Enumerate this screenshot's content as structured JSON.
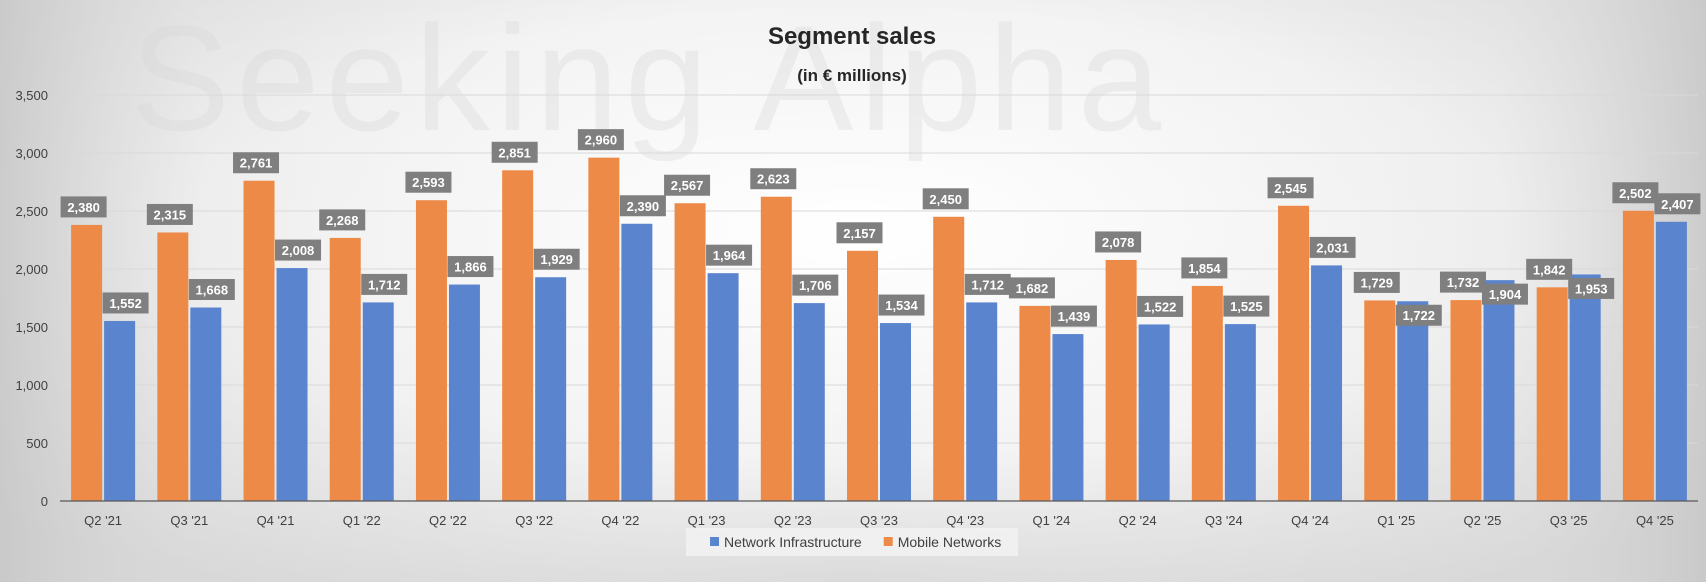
{
  "chart_data": {
    "type": "bar",
    "title": "Segment sales",
    "subtitle": "(in € millions)",
    "watermark": "Seeking Alpha",
    "categories": [
      "Q2 '21",
      "Q3 '21",
      "Q4 '21",
      "Q1 '22",
      "Q2 '22",
      "Q3 '22",
      "Q4 '22",
      "Q1 '23",
      "Q2 '23",
      "Q3 '23",
      "Q4 '23",
      "Q1 '24",
      "Q2 '24",
      "Q3 '24",
      "Q4 '24",
      "Q1 '25",
      "Q2 '25",
      "Q3 '25",
      "Q4 '25"
    ],
    "series": [
      {
        "name": "Mobile Networks",
        "color": "#ED8A48",
        "values": [
          2380,
          2315,
          2761,
          2268,
          2593,
          2851,
          2960,
          2567,
          2623,
          2157,
          2450,
          1682,
          2078,
          1854,
          2545,
          1729,
          1732,
          1842,
          2502
        ],
        "labels": [
          "2,380",
          "2,315",
          "2,761",
          "2,268",
          "2,593",
          "2,851",
          "2,960",
          "2,567",
          "2,623",
          "2,157",
          "2,450",
          "1,682",
          "2,078",
          "1,854",
          "2,545",
          "1,729",
          "1,732",
          "1,842",
          "2,502"
        ]
      },
      {
        "name": "Network Infrastructure",
        "color": "#5B84CE",
        "values": [
          1552,
          1668,
          2008,
          1712,
          1866,
          1929,
          2390,
          1964,
          1706,
          1534,
          1712,
          1439,
          1522,
          1525,
          2031,
          1722,
          1904,
          1953,
          2407
        ],
        "labels": [
          "1,552",
          "1,668",
          "2,008",
          "1,712",
          "1,866",
          "1,929",
          "2,390",
          "1,964",
          "1,706",
          "1,534",
          "1,712",
          "1,439",
          "1,522",
          "1,525",
          "2,031",
          "1,722",
          "1,904",
          "1,953",
          "2,407"
        ]
      }
    ],
    "yticks": [
      0,
      500,
      1000,
      1500,
      2000,
      2500,
      3000,
      3500
    ],
    "ytick_labels": [
      "0",
      "500",
      "1,000",
      "1,500",
      "2,000",
      "2,500",
      "3,000",
      "3,500"
    ],
    "ylim": [
      0,
      3500
    ],
    "legend": {
      "position": "bottom-center",
      "entries": [
        "Network Infrastructure",
        "Mobile Networks"
      ]
    },
    "label_box_color": "#7F7F7F",
    "xlabel": "",
    "ylabel": ""
  }
}
